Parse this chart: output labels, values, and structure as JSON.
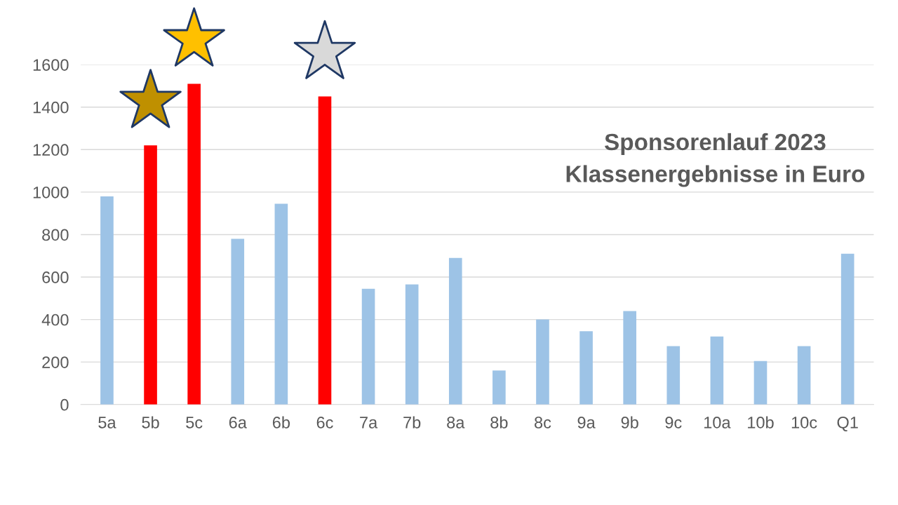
{
  "chart_data": {
    "type": "bar",
    "title": "Sponsorenlauf 2023\nKlassenergebnisse in Euro",
    "categories": [
      "5a",
      "5b",
      "5c",
      "6a",
      "6b",
      "6c",
      "7a",
      "7b",
      "8a",
      "8b",
      "8c",
      "9a",
      "9b",
      "9c",
      "10a",
      "10b",
      "10c",
      "Q1"
    ],
    "values": [
      980,
      1220,
      1510,
      780,
      945,
      1450,
      545,
      565,
      690,
      160,
      400,
      345,
      440,
      275,
      320,
      205,
      275,
      710
    ],
    "colors": [
      "#9dc3e6",
      "#ff0000",
      "#ff0000",
      "#9dc3e6",
      "#9dc3e6",
      "#ff0000",
      "#9dc3e6",
      "#9dc3e6",
      "#9dc3e6",
      "#9dc3e6",
      "#9dc3e6",
      "#9dc3e6",
      "#9dc3e6",
      "#9dc3e6",
      "#9dc3e6",
      "#9dc3e6",
      "#9dc3e6",
      "#9dc3e6"
    ],
    "ylim": [
      0,
      1600
    ],
    "yticks": [
      0,
      200,
      400,
      600,
      800,
      1000,
      1200,
      1400,
      1600
    ],
    "grid": "y",
    "legend": false
  }
}
